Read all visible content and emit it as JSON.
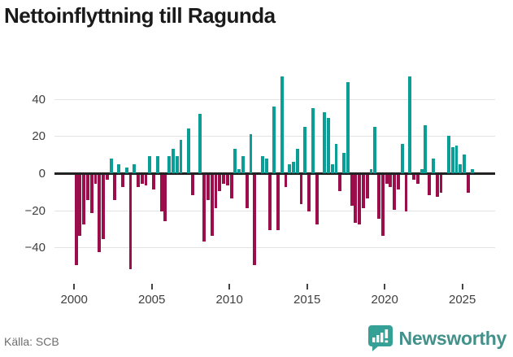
{
  "header": {
    "title": "Nettoinflyttning till Ragunda"
  },
  "footer": {
    "source": "Källa: SCB",
    "brand": "Newsworthy"
  },
  "chart_data": {
    "type": "bar",
    "title": "Nettoinflyttning till Ragunda",
    "xlabel": "",
    "ylabel": "",
    "period": "quarterly",
    "start": "2000-Q1",
    "end": "2025-Q3",
    "x_tick_labels": [
      "2000",
      "2005",
      "2010",
      "2015",
      "2020",
      "2025"
    ],
    "x_tick_years": [
      2000,
      2005,
      2010,
      2015,
      2020,
      2025
    ],
    "y_tick_labels": [
      "−40",
      "−20",
      "0",
      "20",
      "40"
    ],
    "y_ticks": [
      -40,
      -20,
      0,
      20,
      40
    ],
    "ylim": [
      -56,
      57
    ],
    "grid": "horizontal",
    "legend": "none",
    "colors": {
      "positive": "#0a9e96",
      "negative": "#9c0d4c",
      "zero_line": "#222222",
      "gridline": "#e3e3e3",
      "axis_text": "#3f3f3f"
    },
    "values": [
      -49,
      -33,
      -27,
      -14,
      -21,
      -5,
      -42,
      -35,
      -3,
      8,
      -14,
      5,
      -7,
      3,
      -51,
      5,
      -7,
      -5,
      -6,
      9,
      -8,
      9,
      -20,
      -25,
      9,
      13,
      9,
      18,
      0,
      24,
      -11,
      0,
      32,
      -36,
      -14,
      -33,
      -18,
      -9,
      -5,
      -6,
      -13,
      13,
      2,
      9,
      -18,
      21,
      -49,
      0,
      9,
      8,
      -30,
      36,
      -30,
      52,
      -7,
      5,
      6,
      13,
      -16,
      25,
      -20,
      35,
      -27,
      0,
      33,
      30,
      5,
      16,
      -9,
      11,
      49,
      -17,
      -26,
      -27,
      -18,
      -13,
      2,
      25,
      -24,
      -33,
      -5,
      -7,
      -19,
      -8,
      16,
      -20,
      52,
      -3,
      -5,
      2,
      26,
      -11,
      8,
      -12,
      -10,
      0,
      20,
      14,
      15,
      5,
      10,
      -10,
      2
    ]
  }
}
